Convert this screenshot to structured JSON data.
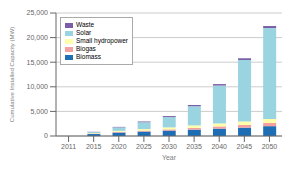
{
  "chart_data": {
    "type": "bar",
    "stacked": true,
    "xlabel": "Year",
    "ylabel": "Cumulative Installed Capacity (MW)",
    "categories": [
      "2011",
      "2015",
      "2020",
      "2025",
      "2030",
      "2035",
      "2040",
      "2045",
      "2050"
    ],
    "series": [
      {
        "name": "Biomass",
        "color": "#1e6eb5",
        "values": [
          0,
          400,
          700,
          900,
          1100,
          1300,
          1500,
          1700,
          2000
        ]
      },
      {
        "name": "Biogas",
        "color": "#f4a0a0",
        "values": [
          0,
          100,
          150,
          200,
          250,
          350,
          450,
          550,
          650
        ]
      },
      {
        "name": "Small hydropower",
        "color": "#ffffaa",
        "values": [
          0,
          100,
          200,
          300,
          400,
          500,
          600,
          700,
          800
        ]
      },
      {
        "name": "Solar",
        "color": "#99d4e0",
        "values": [
          0,
          200,
          700,
          1400,
          2100,
          3900,
          7700,
          12500,
          18500
        ]
      },
      {
        "name": "Waste",
        "color": "#7b5ea7",
        "values": [
          0,
          50,
          100,
          150,
          200,
          250,
          300,
          350,
          400
        ]
      }
    ],
    "ylim": [
      0,
      25000
    ],
    "yticks": [
      0,
      {
        "value": 5000,
        "label": "5,000"
      },
      {
        "value": 10000,
        "label": "10,000"
      },
      {
        "value": 15000,
        "label": "15,000"
      },
      {
        "value": 20000,
        "label": "20,000"
      },
      {
        "value": 25000,
        "label": "25,000"
      }
    ],
    "grid": true,
    "legend": "upper left"
  }
}
